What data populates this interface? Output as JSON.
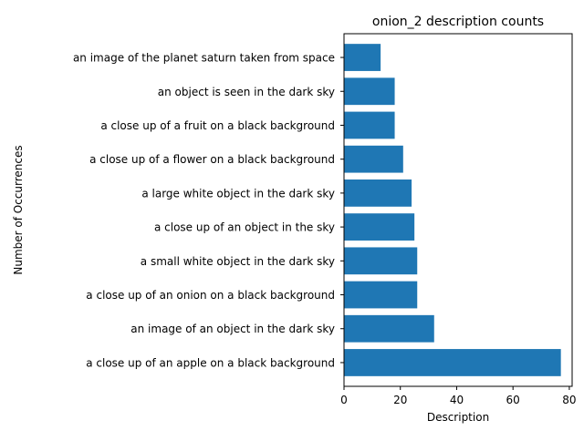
{
  "chart_data": {
    "type": "bar",
    "orientation": "horizontal",
    "title": "onion_2 description counts",
    "xlabel": "Description",
    "ylabel": "Number of Occurrences",
    "xlim": [
      0,
      81
    ],
    "xticks": [
      0,
      20,
      40,
      60,
      80
    ],
    "grid": false,
    "bar_color": "#1f77b4",
    "categories": [
      "a close up of an apple on a black background",
      "an image of an object in the dark sky",
      "a close up of an onion on a black background",
      "a small white object in the dark sky",
      "a close up of an object in the sky",
      "a large white object in the dark sky",
      "a close up of a flower on a black background",
      "a close up of a fruit on a black background",
      "an object is seen in the dark sky",
      "an image of the planet saturn taken from space"
    ],
    "values": [
      77,
      32,
      26,
      26,
      25,
      24,
      21,
      18,
      18,
      13
    ]
  }
}
